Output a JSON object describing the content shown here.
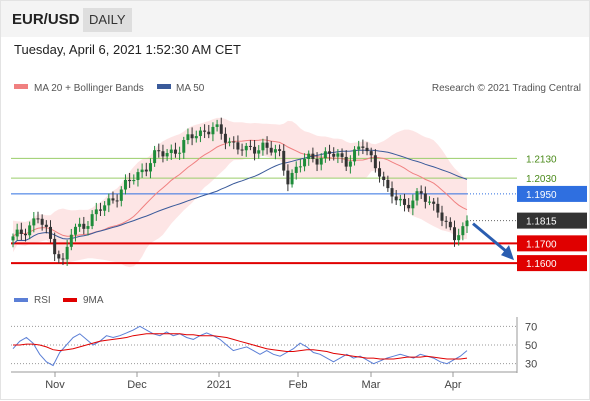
{
  "header": {
    "pair": "EUR/USD",
    "period": "DAILY",
    "datetime": "Tuesday, April 6, 2021 1:52:30 AM CET"
  },
  "legend": {
    "ma20": "MA 20 + Bollinger Bands",
    "ma50": "MA 50",
    "credit": "Research © 2021 Trading Central",
    "rsi": "RSI",
    "rsi_ma": "9MA"
  },
  "colors": {
    "ma20": "#f08080",
    "bollinger_fill": "#fde0e0",
    "ma50": "#3a5a9a",
    "resistance_green": "#9acd6a",
    "pivot_blue": "#2f6fe0",
    "support_red": "#e00000",
    "last_price": "#333333",
    "candle_up": "#1e8c3a",
    "candle_down": "#333333",
    "forecast_arrow": "#2a5db0",
    "rsi_line": "#5b7fd6",
    "rsi_ma_line": "#e00000"
  },
  "chart_data": [
    {
      "type": "candlestick",
      "title": "EUR/USD",
      "x_tick_labels": [
        "Nov",
        "Dec",
        "2021",
        "Feb",
        "Mar",
        "Apr"
      ],
      "y_range": [
        1.155,
        1.242
      ],
      "levels": [
        {
          "value": 1.213,
          "label": "1.2130",
          "kind": "resistance"
        },
        {
          "value": 1.203,
          "label": "1.2030",
          "kind": "resistance"
        },
        {
          "value": 1.195,
          "label": "1.1950",
          "kind": "pivot"
        },
        {
          "value": 1.1815,
          "label": "1.1815",
          "kind": "last-price"
        },
        {
          "value": 1.17,
          "label": "1.1700",
          "kind": "support"
        },
        {
          "value": 1.16,
          "label": "1.1600",
          "kind": "support"
        }
      ],
      "forecast": {
        "from": 1.1815,
        "to": 1.162,
        "direction": "down"
      }
    },
    {
      "type": "line",
      "title": "RSI",
      "y_ticks": [
        70,
        50,
        30
      ],
      "y_range": [
        20,
        80
      ],
      "series": [
        {
          "name": "RSI",
          "values": [
            46,
            54,
            58,
            52,
            40,
            32,
            28,
            42,
            50,
            58,
            62,
            56,
            50,
            54,
            60,
            58,
            60,
            63,
            66,
            70,
            66,
            62,
            60,
            64,
            60,
            62,
            58,
            56,
            60,
            63,
            60,
            56,
            50,
            44,
            46,
            48,
            44,
            40,
            44,
            40,
            38,
            42,
            46,
            52,
            48,
            42,
            40,
            36,
            32,
            36,
            40,
            36,
            38,
            34,
            30,
            33,
            36,
            38,
            40,
            38,
            36,
            40,
            38,
            36,
            32,
            30,
            34,
            38,
            44
          ]
        },
        {
          "name": "9MA",
          "values": [
            50,
            50,
            51,
            51,
            50,
            48,
            45,
            44,
            45,
            46,
            48,
            50,
            52,
            54,
            55,
            56,
            57,
            58,
            60,
            61,
            62,
            62,
            62,
            62,
            62,
            62,
            61,
            61,
            60,
            60,
            60,
            59,
            58,
            56,
            54,
            52,
            50,
            48,
            46,
            45,
            44,
            43,
            43,
            44,
            45,
            45,
            44,
            43,
            41,
            40,
            39,
            38,
            37,
            36,
            36,
            35,
            35,
            35,
            36,
            37,
            37,
            37,
            38,
            37,
            36,
            35,
            35,
            35,
            36
          ]
        }
      ]
    }
  ]
}
